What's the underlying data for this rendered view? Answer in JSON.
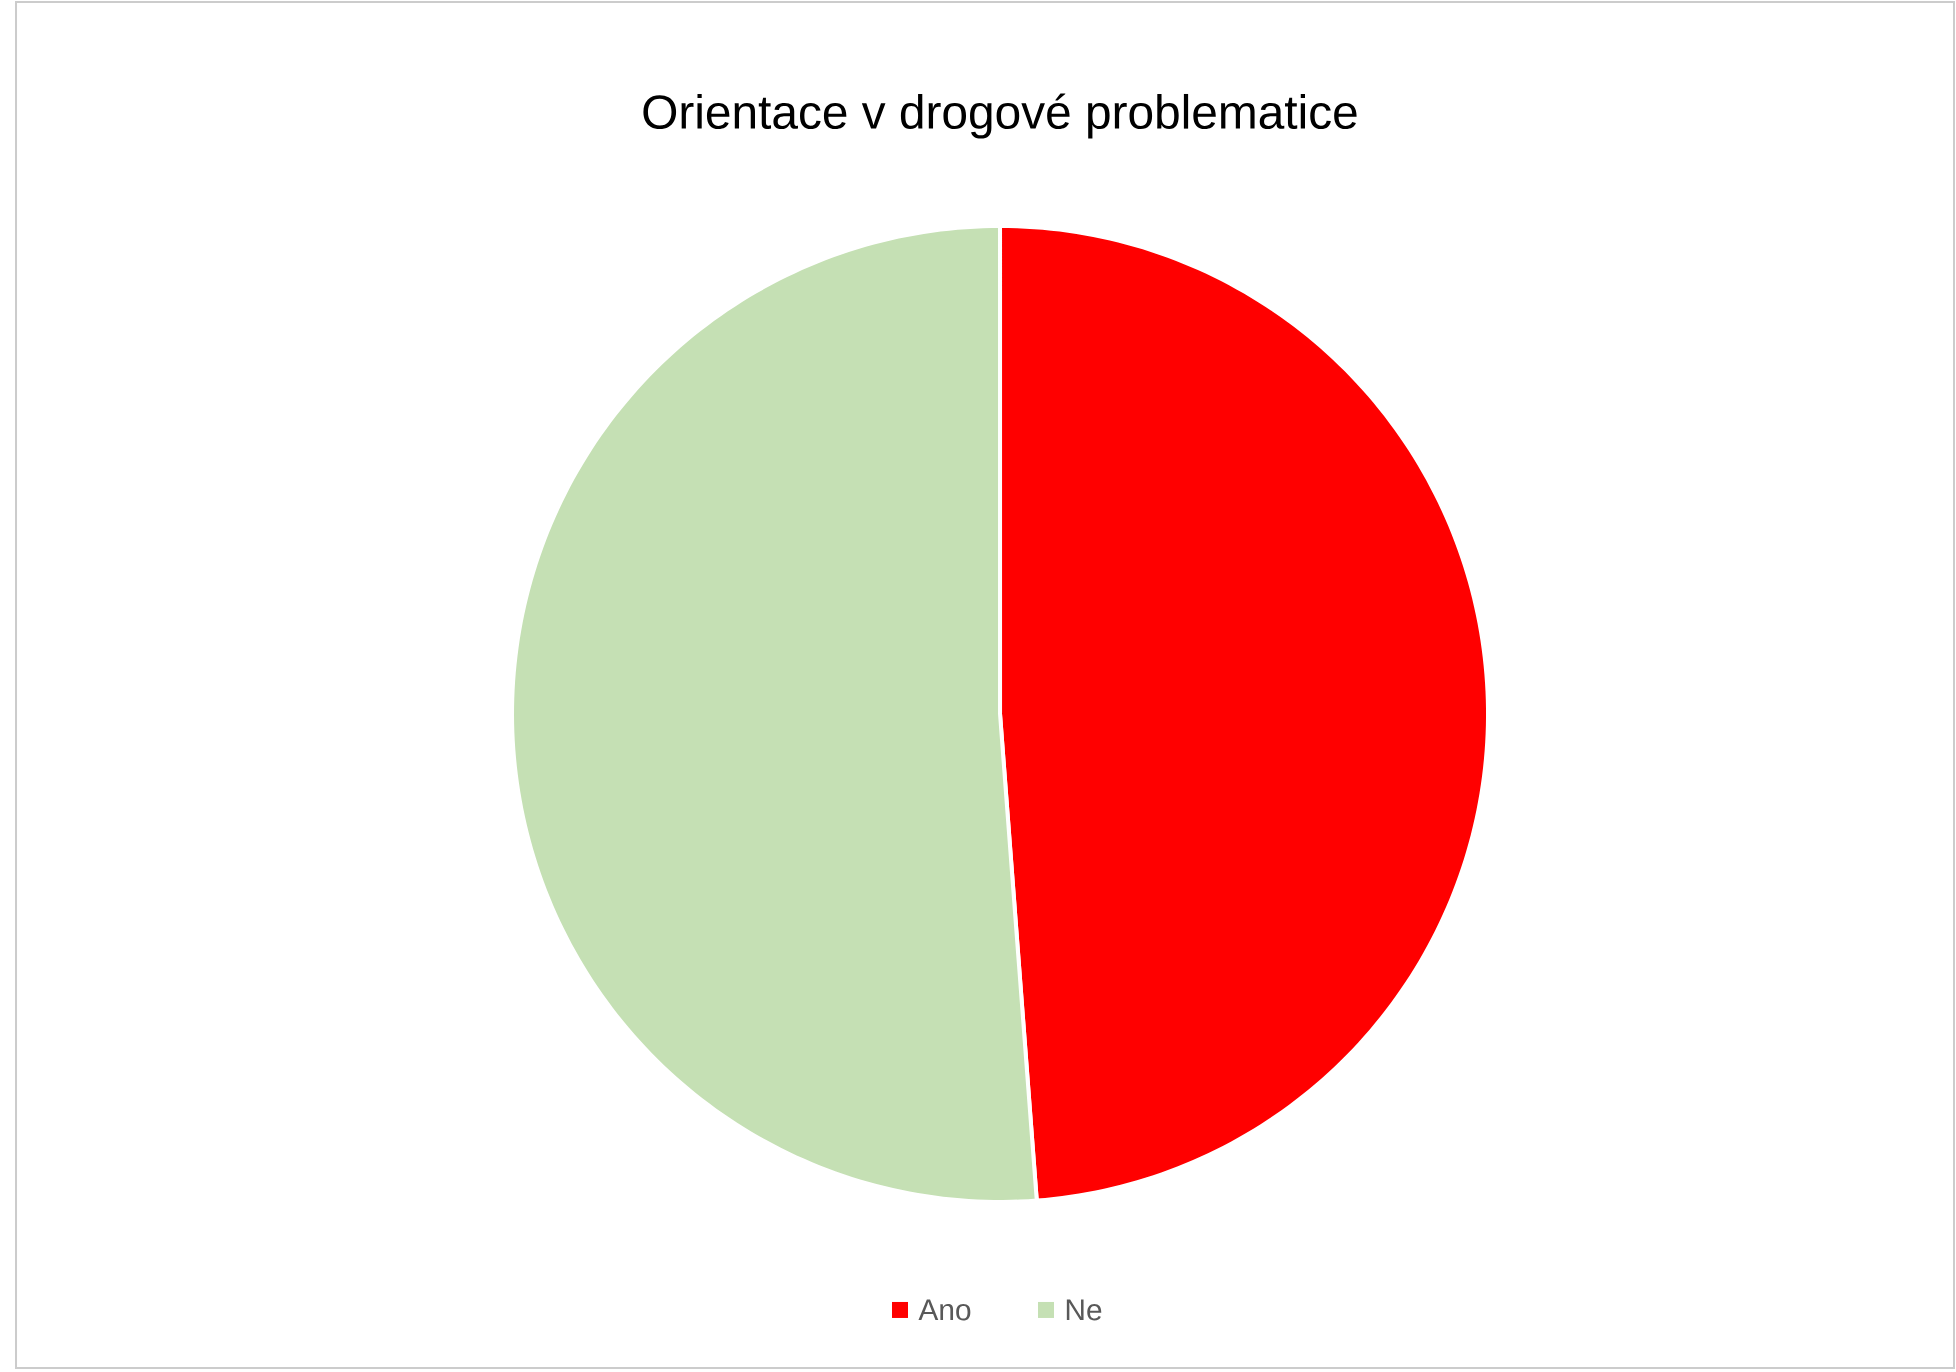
{
  "chart_data": {
    "type": "pie",
    "title": "Orientace v drogové problematice",
    "categories": [
      "Ano",
      "Ne"
    ],
    "values": [
      48.8,
      51.2
    ],
    "colors": [
      "#ff0000",
      "#c5e0b4"
    ],
    "legend": "bottom"
  }
}
